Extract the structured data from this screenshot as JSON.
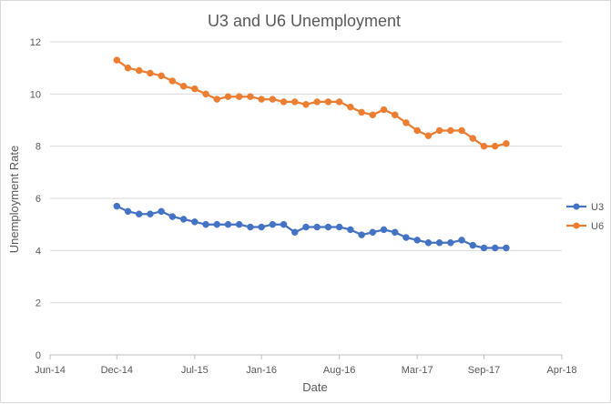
{
  "chart_data": {
    "type": "line",
    "title": "U3 and U6 Unemployment",
    "xlabel": "Date",
    "ylabel": "Unemployment Rate",
    "ylim": [
      0,
      12
    ],
    "yticks": [
      0,
      2,
      4,
      6,
      8,
      10,
      12
    ],
    "xlim": [
      "2014-06",
      "2018-04"
    ],
    "xtick_labels": [
      "Jun-14",
      "Dec-14",
      "Jul-15",
      "Jan-16",
      "Aug-16",
      "Mar-17",
      "Sep-17",
      "Apr-18"
    ],
    "xtick_dates": [
      "2014-06",
      "2014-12",
      "2015-07",
      "2016-01",
      "2016-08",
      "2017-03",
      "2017-09",
      "2018-04"
    ],
    "grid": true,
    "legend_position": "right",
    "x": [
      "2014-12",
      "2015-01",
      "2015-02",
      "2015-03",
      "2015-04",
      "2015-05",
      "2015-06",
      "2015-07",
      "2015-08",
      "2015-09",
      "2015-10",
      "2015-11",
      "2015-12",
      "2016-01",
      "2016-02",
      "2016-03",
      "2016-04",
      "2016-05",
      "2016-06",
      "2016-07",
      "2016-08",
      "2016-09",
      "2016-10",
      "2016-11",
      "2016-12",
      "2017-01",
      "2017-02",
      "2017-03",
      "2017-04",
      "2017-05",
      "2017-06",
      "2017-07",
      "2017-08",
      "2017-09",
      "2017-10",
      "2017-11",
      "2017-12"
    ],
    "series": [
      {
        "name": "U3",
        "color": "#4472c4",
        "values": [
          5.7,
          5.5,
          5.4,
          5.4,
          5.5,
          5.3,
          5.2,
          5.1,
          5.0,
          5.0,
          5.0,
          5.0,
          4.9,
          4.9,
          5.0,
          5.0,
          4.7,
          4.9,
          4.9,
          4.9,
          4.9,
          4.8,
          4.6,
          4.7,
          4.8,
          4.7,
          4.5,
          4.4,
          4.3,
          4.3,
          4.3,
          4.4,
          4.2,
          4.1,
          4.1,
          4.1,
          null
        ]
      },
      {
        "name": "U6",
        "color": "#ed7d31",
        "values": [
          11.3,
          11.0,
          10.9,
          10.8,
          10.7,
          10.5,
          10.3,
          10.2,
          10.0,
          9.8,
          9.9,
          9.9,
          9.9,
          9.8,
          9.8,
          9.7,
          9.7,
          9.6,
          9.7,
          9.7,
          9.7,
          9.5,
          9.3,
          9.2,
          9.4,
          9.2,
          8.9,
          8.6,
          8.4,
          8.6,
          8.6,
          8.6,
          8.3,
          8.0,
          8.0,
          8.1,
          null
        ]
      }
    ]
  }
}
